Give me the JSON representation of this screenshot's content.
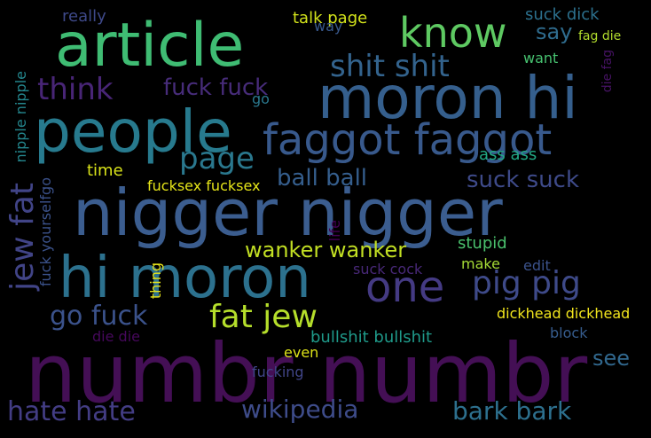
{
  "words": [
    {
      "text": "numbr numbr",
      "color": "#440f55"
    },
    {
      "text": "nigger nigger",
      "color": "#3b5d8f"
    },
    {
      "text": "people",
      "color": "#277a8e"
    },
    {
      "text": "moron hi",
      "color": "#355f8d"
    },
    {
      "text": "article",
      "color": "#3fbc73"
    },
    {
      "text": "hi moron",
      "color": "#2c718e"
    },
    {
      "text": "faggot faggot",
      "color": "#38598c"
    },
    {
      "text": "one",
      "color": "#443a83"
    },
    {
      "text": "know",
      "color": "#5ec962"
    },
    {
      "text": "pig pig",
      "color": "#3e4a89"
    },
    {
      "text": "shit shit",
      "color": "#33638d"
    },
    {
      "text": "fat jew",
      "color": "#b5de2b"
    },
    {
      "text": "think",
      "color": "#482576"
    },
    {
      "text": "page",
      "color": "#2a788e"
    },
    {
      "text": "hate hate",
      "color": "#433d84"
    },
    {
      "text": "wikipedia",
      "color": "#3e4c8a"
    },
    {
      "text": "bark bark",
      "color": "#2d708e"
    },
    {
      "text": "go fuck",
      "color": "#3b528b"
    },
    {
      "text": "fuck fuck",
      "color": "#472c7a"
    },
    {
      "text": "suck suck",
      "color": "#3e4a89"
    },
    {
      "text": "ball ball",
      "color": "#355e8d"
    },
    {
      "text": "wanker wanker",
      "color": "#c2df23"
    },
    {
      "text": "say",
      "color": "#2f6c8e"
    },
    {
      "text": "see",
      "color": "#31688e"
    },
    {
      "text": "jew fat",
      "color": "#414487"
    },
    {
      "text": "suck dick",
      "color": "#2c718e"
    },
    {
      "text": "talk page",
      "color": "#d2e21b"
    },
    {
      "text": "ass ass",
      "color": "#22a884"
    },
    {
      "text": "stupid",
      "color": "#4ac16d"
    },
    {
      "text": "bullshit bullshit",
      "color": "#1f9a8a"
    },
    {
      "text": "dickhead dickhead",
      "color": "#f1e51d"
    },
    {
      "text": "block",
      "color": "#365c8d"
    },
    {
      "text": "nipple nipple",
      "color": "#24878e"
    },
    {
      "text": "fuck yourselfgo",
      "color": "#3b528b"
    },
    {
      "text": "really",
      "color": "#3e4989"
    },
    {
      "text": "time",
      "color": "#d8e219"
    },
    {
      "text": "fucksex fucksex",
      "color": "#e5e419"
    },
    {
      "text": "suck cock",
      "color": "#482878"
    },
    {
      "text": "make",
      "color": "#a5db36"
    },
    {
      "text": "edit",
      "color": "#3b528b"
    },
    {
      "text": "want",
      "color": "#46c06f"
    },
    {
      "text": "fag die",
      "color": "#b2dd2d"
    },
    {
      "text": "way",
      "color": "#38588c"
    },
    {
      "text": "go",
      "color": "#2a788e"
    },
    {
      "text": "even",
      "color": "#dde318"
    },
    {
      "text": "fucking",
      "color": "#404588"
    },
    {
      "text": "die die",
      "color": "#46085c"
    },
    {
      "text": "life",
      "color": "#440154"
    },
    {
      "text": "thing",
      "color": "#e7e419"
    },
    {
      "text": "die fag",
      "color": "#471365"
    },
    {
      "text": "ball ball .",
      "color": "#355e8d"
    }
  ]
}
